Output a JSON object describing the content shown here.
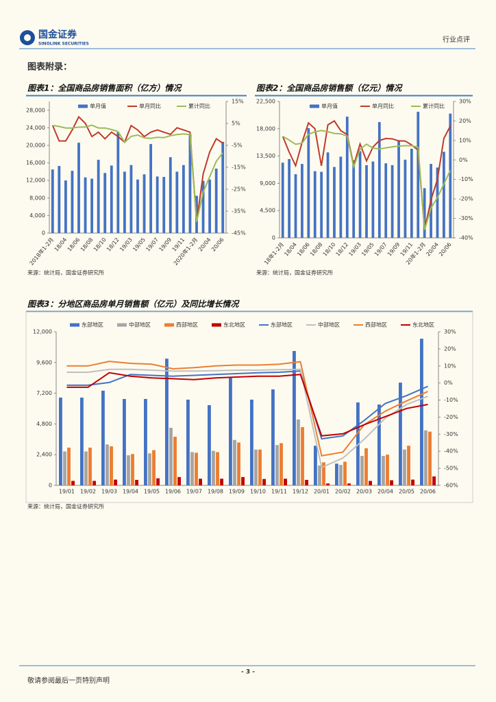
{
  "header": {
    "company": "国金证券",
    "company_en": "SINOLINK SECURITIES",
    "report_type": "行业点评"
  },
  "section_title": "图表附录：",
  "chart_data": [
    {
      "type": "combo",
      "title": "图表1：全国商品房销售面积（亿方）情况",
      "source": "来源：统计局，国金证券研究所",
      "legend": "top",
      "categories": [
        "2018年1-2月",
        null,
        "18/04",
        null,
        "18/06",
        null,
        "18/08",
        null,
        "18/10",
        null,
        "18/12",
        null,
        "19/03",
        null,
        "19/05",
        null,
        "19/07",
        null,
        "19/09",
        null,
        "19/11",
        null,
        "2020年1-2月",
        null,
        "20/04",
        null,
        "20/06"
      ],
      "series": [
        {
          "name": "单月值",
          "type": "bar",
          "color": "#4472c4",
          "values": [
            14500,
            15300,
            12000,
            14200,
            20600,
            12700,
            12400,
            16700,
            13700,
            15400,
            23000,
            14000,
            15500,
            12200,
            13400,
            20300,
            12900,
            12800,
            17300,
            14000,
            15500,
            22500,
            8500,
            11900,
            12200,
            14700,
            20800
          ]
        },
        {
          "name": "单月同比",
          "type": "line",
          "axis": "y2",
          "color": "#c0392b",
          "values": [
            4.1,
            -3,
            -3,
            2,
            8,
            5,
            -1,
            1,
            -2,
            1,
            -1,
            -3.6,
            4,
            2,
            -1,
            1,
            2,
            1,
            0,
            3,
            2,
            1,
            -39.9,
            -18,
            -8,
            -2,
            -4
          ]
        },
        {
          "name": "累计同比",
          "type": "line",
          "axis": "y2",
          "color": "#9bbb59",
          "values": [
            4.1,
            3.6,
            2.9,
            2.9,
            3.3,
            3.3,
            4.2,
            2.9,
            2.9,
            2.2,
            1.3,
            -3.6,
            -0.9,
            -0.3,
            -1.6,
            -1.8,
            -1.3,
            -1.5,
            -0.6,
            -0.1,
            0.2,
            -0.1,
            -39.9,
            -26.3,
            -19.3,
            -12.3,
            -8.4
          ]
        }
      ],
      "ylim": [
        0,
        30000
      ],
      "yticks": [
        0,
        {
          "value": 4000,
          "label": "4,000"
        },
        {
          "value": 8000,
          "label": "8,000"
        },
        {
          "value": 12000,
          "label": "12,000"
        },
        {
          "value": 16000,
          "label": "16,000"
        },
        {
          "value": 20000,
          "label": "20,000"
        },
        {
          "value": 24000,
          "label": "24,000"
        },
        {
          "value": 28000,
          "label": "28,000"
        }
      ],
      "y2lim": [
        -45,
        15
      ],
      "y2ticks": [
        {
          "value": -45,
          "label": "-45%"
        },
        {
          "value": -35,
          "label": "-35%"
        },
        {
          "value": -25,
          "label": "-25%"
        },
        {
          "value": -15,
          "label": "-15%"
        },
        {
          "value": -5,
          "label": "-5%"
        },
        {
          "value": 5,
          "label": "5%"
        },
        {
          "value": 15,
          "label": "15%"
        }
      ]
    },
    {
      "type": "combo",
      "title": "图表2：全国商品房销售额（亿元）情况",
      "source": "来源：统计局，国金证券研究所",
      "legend": "top",
      "categories": [
        "18年1-2月",
        null,
        "18/04",
        null,
        "18/06",
        null,
        "18/08",
        null,
        "18/10",
        null,
        "18/12",
        null,
        "19/03",
        null,
        "19/05",
        null,
        "19/07",
        null,
        "19/09",
        null,
        "19/11",
        null,
        "20年1-2月",
        null,
        "20/04",
        null,
        "20/06"
      ],
      "series": [
        {
          "name": "单月值",
          "type": "bar",
          "color": "#4472c4",
          "values": [
            12400,
            13000,
            10500,
            12200,
            18100,
            11000,
            10900,
            14100,
            11700,
            13400,
            20000,
            12800,
            14300,
            12000,
            12600,
            19100,
            12300,
            12000,
            16000,
            12900,
            14700,
            20800,
            8200,
            12200,
            11600,
            14200,
            20500
          ]
        },
        {
          "name": "单月同比",
          "type": "line",
          "axis": "y2",
          "color": "#c0392b",
          "values": [
            12.1,
            4,
            -3,
            9,
            19,
            16,
            -3,
            18,
            20,
            15,
            13,
            -2.8,
            8.2,
            -0.5,
            6.6,
            10,
            11,
            10.8,
            9.8,
            9.7,
            7.7,
            5,
            -35.9,
            -20.5,
            -10,
            11,
            17.4
          ]
        },
        {
          "name": "累计同比",
          "type": "line",
          "axis": "y2",
          "color": "#9bbb59",
          "values": [
            12.1,
            10.2,
            8,
            8.6,
            13.2,
            14.4,
            15.1,
            14.5,
            13.6,
            13.4,
            12.2,
            -3.6,
            5.6,
            8.1,
            6.1,
            5.6,
            6.2,
            6.7,
            7.1,
            7.3,
            7.3,
            6.5,
            -35.9,
            -24.7,
            -19.3,
            -12.4,
            -5.4
          ]
        }
      ],
      "ylim": [
        0,
        22500
      ],
      "yticks": [
        0,
        {
          "value": 4500,
          "label": "4,500"
        },
        {
          "value": 9000,
          "label": "9,000"
        },
        {
          "value": 13500,
          "label": "13,500"
        },
        {
          "value": 18000,
          "label": "18,000"
        },
        {
          "value": 22500,
          "label": "22,500"
        }
      ],
      "y2lim": [
        -40,
        30
      ],
      "y2ticks": [
        {
          "value": -40,
          "label": "-40%"
        },
        {
          "value": -30,
          "label": "-30%"
        },
        {
          "value": -20,
          "label": "-20%"
        },
        {
          "value": -10,
          "label": "-10%"
        },
        {
          "value": 0,
          "label": "0%"
        },
        {
          "value": 10,
          "label": "10%"
        },
        {
          "value": 20,
          "label": "20%"
        },
        {
          "value": 30,
          "label": "30%"
        }
      ]
    },
    {
      "type": "combo",
      "title": "图表3：分地区商品房单月销售额（亿元）及同比增长情况",
      "source": "来源：统计局，国金证券研究所",
      "legend": "above",
      "categories": [
        "19/01",
        "19/02",
        "19/03",
        "19/04",
        "19/05",
        "19/06",
        "19/07",
        "19/08",
        "19/09",
        "19/10",
        "19/11",
        "19/12",
        "20/01",
        "20/02",
        "20/03",
        "20/04",
        "20/05",
        "20/06"
      ],
      "series": [
        {
          "name": "东部地区",
          "type": "bar",
          "color": "#4472c4",
          "values": [
            6860,
            6860,
            7400,
            6750,
            6750,
            9900,
            6700,
            6270,
            8460,
            6700,
            7500,
            10500,
            3100,
            1700,
            6480,
            6320,
            8030,
            11460
          ]
        },
        {
          "name": "中部地区",
          "type": "bar",
          "color": "#a5a5a5",
          "values": [
            2650,
            2650,
            3200,
            2350,
            2500,
            4500,
            2600,
            2700,
            3550,
            2800,
            3150,
            5150,
            1550,
            1600,
            2300,
            2300,
            2800,
            4300
          ]
        },
        {
          "name": "西部地区",
          "type": "bar",
          "color": "#ed7d31",
          "values": [
            2950,
            2950,
            3050,
            2450,
            2750,
            3800,
            2550,
            2600,
            3350,
            2800,
            3300,
            4550,
            1800,
            1850,
            2900,
            2400,
            3100,
            4200
          ]
        },
        {
          "name": "东北地区",
          "type": "bar",
          "color": "#c00000",
          "values": [
            350,
            350,
            450,
            430,
            550,
            650,
            520,
            520,
            650,
            500,
            520,
            430,
            150,
            150,
            350,
            400,
            450,
            700
          ]
        },
        {
          "name": "东部地区",
          "type": "line",
          "axis": "y2",
          "color": "#4472c4",
          "values": [
            -1.3,
            -1.3,
            0.3,
            5,
            4.5,
            4,
            4.5,
            5,
            5.5,
            6,
            6.3,
            7,
            -32.7,
            -31,
            -22,
            -12,
            -7.4,
            -2
          ]
        },
        {
          "name": "中部地区",
          "type": "line",
          "axis": "y2",
          "color": "#bfbfbf",
          "values": [
            6.3,
            6.3,
            8,
            8,
            7.5,
            7,
            7,
            7.2,
            7.5,
            7.5,
            7.8,
            8,
            -49.5,
            -44,
            -33,
            -20.6,
            -12.6,
            -7.8
          ]
        },
        {
          "name": "西部地区",
          "type": "line",
          "axis": "y2",
          "color": "#ed7d31",
          "values": [
            10,
            10,
            12.7,
            11.5,
            11,
            8.3,
            9,
            10,
            10.5,
            10.5,
            11,
            12.5,
            -42.7,
            -40.5,
            -24.5,
            -16.5,
            -10.5,
            -5
          ]
        },
        {
          "name": "东北地区",
          "type": "line",
          "axis": "y2",
          "color": "#c00000",
          "values": [
            -2.5,
            -2.5,
            6,
            4,
            3,
            2.5,
            2,
            3,
            3.5,
            4,
            4,
            5,
            -31,
            -29.8,
            -24.5,
            -19.7,
            -14.9,
            -12.6
          ]
        }
      ],
      "ylim": [
        0,
        12000
      ],
      "yticks": [
        0,
        {
          "value": 2400,
          "label": "2,400"
        },
        {
          "value": 4800,
          "label": "4,800"
        },
        {
          "value": 7200,
          "label": "7,200"
        },
        {
          "value": 9600,
          "label": "9,600"
        },
        {
          "value": 12000,
          "label": "12,000"
        }
      ],
      "y2lim": [
        -60,
        30
      ],
      "y2ticks": [
        {
          "value": -60,
          "label": "-60%"
        },
        {
          "value": -50,
          "label": "-50%"
        },
        {
          "value": -40,
          "label": "-40%"
        },
        {
          "value": -30,
          "label": "-30%"
        },
        {
          "value": -20,
          "label": "-20%"
        },
        {
          "value": -10,
          "label": "-10%"
        },
        {
          "value": 0,
          "label": "0%"
        },
        {
          "value": 10,
          "label": "10%"
        },
        {
          "value": 20,
          "label": "20%"
        },
        {
          "value": 30,
          "label": "30%"
        }
      ]
    }
  ],
  "footer": {
    "page": "- 3 -",
    "disclaimer": "敬请参阅最后一页特别声明"
  }
}
